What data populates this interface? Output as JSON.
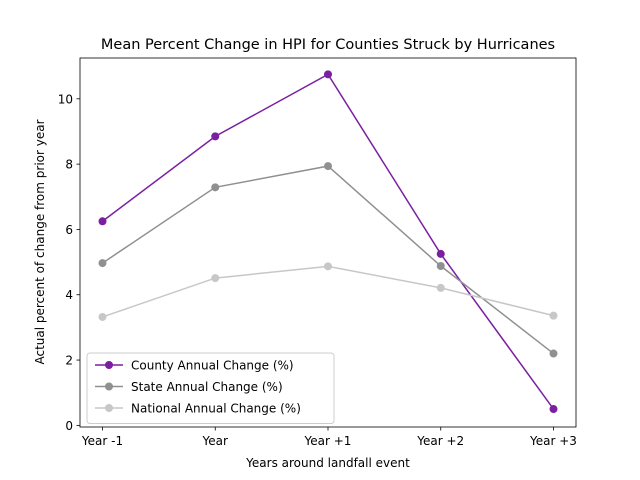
{
  "chart_data": {
    "type": "line",
    "title": "Mean Percent Change in HPI for Counties Struck by Hurricanes",
    "xlabel": "Years around landfall event",
    "ylabel": "Actual percent of change from prior year",
    "categories": [
      "Year -1",
      "Year",
      "Year +1",
      "Year +2",
      "Year +3"
    ],
    "ylim": [
      -0.05,
      11.25
    ],
    "yticks": [
      0,
      2,
      4,
      6,
      8,
      10
    ],
    "grid": false,
    "legend_position": "lower-left",
    "series": [
      {
        "name": "County Annual Change (%)",
        "color": "#7b1fa2",
        "values": [
          6.25,
          8.85,
          10.75,
          5.25,
          0.5
        ]
      },
      {
        "name": "State Annual Change (%)",
        "color": "#909090",
        "values": [
          4.97,
          7.29,
          7.94,
          4.88,
          2.2
        ]
      },
      {
        "name": "National Annual Change (%)",
        "color": "#c7c7c7",
        "values": [
          3.32,
          4.51,
          4.87,
          4.21,
          3.36
        ]
      }
    ]
  }
}
